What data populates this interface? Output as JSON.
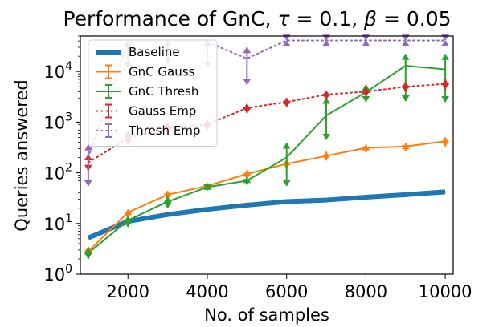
{
  "chart_data": {
    "type": "line",
    "title_main": "Performance of GnC, ",
    "title_tau": "τ",
    "title_tau_val": " = 0.1, ",
    "title_beta": "β",
    "title_beta_val": " = 0.05",
    "xlabel": "No. of samples",
    "ylabel": "Queries answered",
    "y_scale": "log",
    "xlim": [
      800,
      10200
    ],
    "ylim": [
      1,
      50000
    ],
    "x_ticks": [
      2000,
      4000,
      6000,
      8000,
      10000
    ],
    "x_tick_labels": [
      "2000",
      "4000",
      "6000",
      "8000",
      "10000"
    ],
    "y_ticks": [
      1,
      10,
      100,
      1000,
      10000
    ],
    "y_tick_labels": [
      {
        "base": "10",
        "exp": "0"
      },
      {
        "base": "10",
        "exp": "1"
      },
      {
        "base": "10",
        "exp": "2"
      },
      {
        "base": "10",
        "exp": "3"
      },
      {
        "base": "10",
        "exp": "4"
      }
    ],
    "grid": false,
    "legend_position": "top-left",
    "x": [
      1000,
      2000,
      3000,
      4000,
      5000,
      6000,
      7000,
      8000,
      9000,
      10000
    ],
    "series": [
      {
        "name": "Baseline",
        "color": "#1f77b4",
        "style": "solid",
        "width": 6,
        "values": [
          5.2,
          11,
          15,
          19,
          23,
          27,
          29,
          33,
          37,
          42
        ]
      },
      {
        "name": "GnC Gauss",
        "color": "#ff7f0e",
        "style": "solid",
        "width": 2,
        "values": [
          2.8,
          16.5,
          37,
          55,
          95,
          150,
          215,
          310,
          330,
          420
        ],
        "err_low": [
          2.3,
          13,
          30,
          47,
          75,
          120,
          175,
          250,
          270,
          330
        ],
        "err_high": [
          3.5,
          19,
          44,
          63,
          115,
          185,
          260,
          360,
          380,
          500
        ]
      },
      {
        "name": "GnC Thresh",
        "color": "#2ca02c",
        "style": "solid",
        "width": 2,
        "values": [
          2.6,
          11.5,
          27,
          52,
          70,
          200,
          1350,
          3900,
          13000,
          11000
        ],
        "err_low": [
          2.0,
          8.5,
          20,
          45,
          58,
          55,
          450,
          2500,
          2600,
          2500
        ],
        "err_high": [
          3.3,
          14,
          34,
          60,
          82,
          390,
          3000,
          5500,
          22000,
          22000
        ]
      },
      {
        "name": "Gauss Emp",
        "color": "#d62728",
        "style": "dotted",
        "width": 2,
        "values": [
          160,
          480,
          760,
          900,
          1900,
          2500,
          3500,
          4000,
          5000,
          5700
        ],
        "err_low": [
          110,
          360,
          600,
          700,
          1500,
          2000,
          2800,
          3200,
          4000,
          4500
        ],
        "err_high": [
          230,
          650,
          950,
          1100,
          2300,
          3000,
          4200,
          4900,
          6200,
          7000
        ]
      },
      {
        "name": "Thresh Emp",
        "color": "#9467bd",
        "style": "dotted",
        "width": 2,
        "values": [
          200,
          38000,
          38000,
          38000,
          18000,
          41000,
          41000,
          41000,
          41000,
          41000
        ],
        "err_low": [
          55,
          12000,
          14000,
          12000,
          5500,
          41000,
          41000,
          41000,
          41000,
          41000
        ],
        "err_high": [
          360,
          41000,
          41000,
          41000,
          30000,
          41000,
          41000,
          41000,
          41000,
          41000
        ]
      }
    ]
  }
}
